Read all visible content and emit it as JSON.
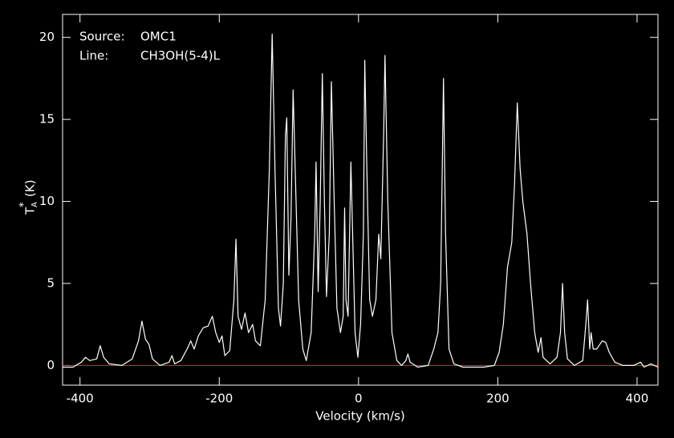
{
  "chart_data": {
    "type": "line",
    "annotations": [
      {
        "label": "Source:",
        "text": "OMC1"
      },
      {
        "label": "Line:",
        "text": "CH3OH(5-4)L"
      }
    ],
    "xlabel": "Velocity (km/s)",
    "ylabel": {
      "symbol": "T",
      "subscript": "A",
      "superscript": "*",
      "unit": "(K)"
    },
    "xlim": [
      -425,
      430
    ],
    "ylim": [
      -1.2,
      21.4
    ],
    "xticks": [
      -400,
      -200,
      0,
      200,
      400
    ],
    "yticks": [
      0,
      5,
      10,
      15,
      20
    ],
    "baseline": 0,
    "baseline_color": "#ff2020",
    "series": [
      {
        "color": "#ffffff",
        "x": [
          -425,
          -410,
          -398,
          -392,
          -386,
          -376,
          -371,
          -366,
          -358,
          -340,
          -325,
          -316,
          -311,
          -306,
          -301,
          -296,
          -285,
          -272,
          -268,
          -264,
          -255,
          -245,
          -241,
          -236,
          -230,
          -223,
          -216,
          -210,
          -205,
          -200,
          -196,
          -192,
          -185,
          -179,
          -176,
          -173,
          -168,
          -163,
          -158,
          -152,
          -148,
          -141,
          -134,
          -128,
          -124,
          -120,
          -115,
          -112,
          -108,
          -105,
          -103,
          -100,
          -97,
          -94,
          -91,
          -86,
          -80,
          -75,
          -68,
          -63,
          -61,
          -58,
          -55,
          -52,
          -49,
          -46,
          -42,
          -39,
          -35,
          -31,
          -26,
          -22,
          -20,
          -18,
          -15,
          -11,
          -9,
          -5,
          -1,
          3,
          7,
          9,
          12,
          16,
          20,
          25,
          29,
          32,
          36,
          38,
          42,
          48,
          55,
          62,
          68,
          71,
          74,
          85,
          100,
          108,
          114,
          118,
          122,
          125,
          130,
          137,
          150,
          180,
          195,
          202,
          208,
          214,
          220,
          224,
          228,
          232,
          236,
          242,
          247,
          253,
          258,
          262,
          265,
          275,
          285,
          290,
          293,
          296,
          300,
          310,
          322,
          327,
          329,
          332,
          334,
          337,
          342,
          350,
          355,
          360,
          368,
          380,
          395,
          405,
          410,
          420,
          430
        ],
        "values": [
          -0.1,
          -0.1,
          0.2,
          0.5,
          0.3,
          0.4,
          1.2,
          0.5,
          0.1,
          0.0,
          0.4,
          1.5,
          2.7,
          1.6,
          1.3,
          0.4,
          0.0,
          0.2,
          0.6,
          0.1,
          0.3,
          1.1,
          1.5,
          1.0,
          1.8,
          2.3,
          2.4,
          3.0,
          2.0,
          1.4,
          1.8,
          0.6,
          0.9,
          4.0,
          7.7,
          3.0,
          2.2,
          3.2,
          2.0,
          2.5,
          1.5,
          1.2,
          4.0,
          12.0,
          20.2,
          12.0,
          3.5,
          2.4,
          5.0,
          14.0,
          15.1,
          5.5,
          9.0,
          16.8,
          12.0,
          4.0,
          1.0,
          0.3,
          2.0,
          8.0,
          12.4,
          4.5,
          10.0,
          17.8,
          10.0,
          4.2,
          8.0,
          17.3,
          10.0,
          3.5,
          2.0,
          3.0,
          9.6,
          4.0,
          3.0,
          12.4,
          9.0,
          2.0,
          0.5,
          2.5,
          8.0,
          18.6,
          12.0,
          4.0,
          3.0,
          4.0,
          8.0,
          6.5,
          14.0,
          18.9,
          10.0,
          2.0,
          0.3,
          0.0,
          0.3,
          0.7,
          0.2,
          -0.1,
          0.0,
          1.0,
          2.0,
          5.0,
          17.5,
          8.0,
          1.0,
          0.1,
          -0.1,
          -0.1,
          0.0,
          0.8,
          2.5,
          6.0,
          7.5,
          11.0,
          16.0,
          12.0,
          10.0,
          8.0,
          5.0,
          2.0,
          0.8,
          1.7,
          0.5,
          0.1,
          0.5,
          2.0,
          5.0,
          2.0,
          0.4,
          0.0,
          0.3,
          2.8,
          4.0,
          1.0,
          2.0,
          1.0,
          1.0,
          1.5,
          1.4,
          0.8,
          0.2,
          0.0,
          0.0,
          0.2,
          -0.1,
          0.1,
          -0.1
        ]
      }
    ]
  }
}
